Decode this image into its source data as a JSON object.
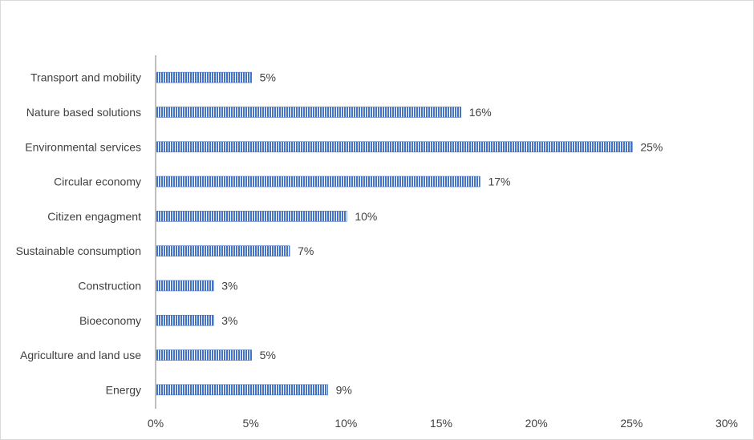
{
  "chart_data": {
    "type": "bar",
    "orientation": "horizontal",
    "categories": [
      "Transport and mobility",
      "Nature based solutions",
      "Environmental services",
      "Circular economy",
      "Citizen engagment",
      "Sustainable consumption",
      "Construction",
      "Bioeconomy",
      "Agriculture and land use",
      "Energy"
    ],
    "values": [
      5,
      16,
      25,
      17,
      10,
      7,
      3,
      3,
      5,
      9
    ],
    "data_labels": [
      "5%",
      "16%",
      "25%",
      "17%",
      "10%",
      "7%",
      "3%",
      "3%",
      "5%",
      "9%"
    ],
    "title": "",
    "xlabel": "",
    "ylabel": "",
    "xlim": [
      0,
      30
    ],
    "x_ticks": [
      0,
      5,
      10,
      15,
      20,
      25,
      30
    ],
    "x_tick_labels": [
      "0%",
      "5%",
      "10%",
      "15%",
      "20%",
      "25%",
      "30%"
    ],
    "grid": false,
    "legend": "none",
    "bar_color": "#4472c4",
    "bar_pattern": "vertical-hatch"
  }
}
